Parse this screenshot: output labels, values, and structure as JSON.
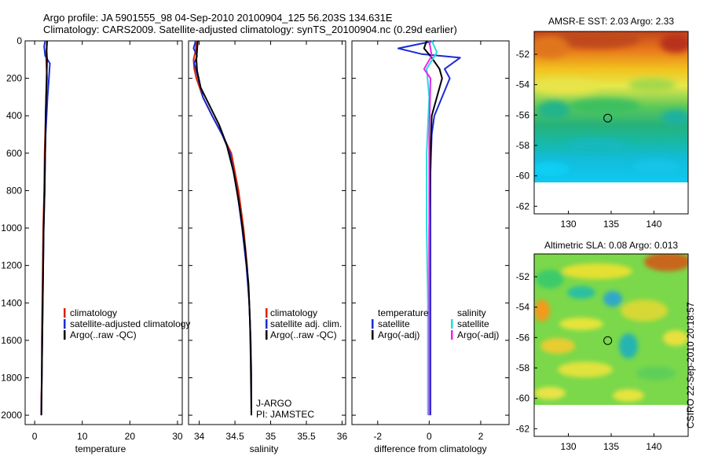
{
  "header": {
    "title_line1": "Argo profile: JA 5901555_98 04-Sep-2010 20100904_125 56.203S 134.631E",
    "title_line2": "Climatology: CARS2009. Satellite-adjusted climatology: synTS_20100904.nc (0.29d earlier)"
  },
  "stamp": "CSIRO 22-Sep-2010 20:18:57",
  "colors": {
    "climatology": "#dd2200",
    "satellite_adjusted": "#1a2bd6",
    "argo": "#000000",
    "satellite_salinity": "#22dddd",
    "argo_adj_salinity": "#ee22ee"
  },
  "chart_data": [
    {
      "type": "line",
      "title": "",
      "xlabel": "temperature",
      "ylabel": "",
      "xlim": [
        -2,
        31
      ],
      "ylim": [
        2050,
        0
      ],
      "xticks": [
        0,
        10,
        20,
        30
      ],
      "xtick_labels": [
        "0",
        "10",
        "20",
        "30"
      ],
      "yticks": [
        0,
        200,
        400,
        600,
        800,
        1000,
        1200,
        1400,
        1600,
        1800,
        2000
      ],
      "ytick_labels": [
        "0",
        "200",
        "400",
        "600",
        "800",
        "1000",
        "1200",
        "1400",
        "1600",
        "1800",
        "2000"
      ],
      "legend": {
        "position": "bottom-right",
        "entries": [
          "climatology",
          "satellite-adjusted climatology",
          "Argo(..raw -QC)"
        ]
      },
      "series": [
        {
          "name": "climatology",
          "color": "#dd2200",
          "x": [
            2.6,
            2.5,
            2.4,
            2.5,
            2.6,
            2.4,
            2.3,
            2.2,
            2.1,
            2.0,
            1.9,
            1.8,
            1.7,
            1.6,
            1.5,
            1.5,
            1.4,
            1.4
          ],
          "y": [
            0,
            50,
            100,
            150,
            200,
            300,
            400,
            500,
            600,
            800,
            900,
            1000,
            1200,
            1400,
            1600,
            1800,
            1900,
            2000
          ]
        },
        {
          "name": "satellite-adjusted climatology",
          "color": "#1a2bd6",
          "x": [
            2.2,
            2.0,
            2.2,
            3.2,
            3.0,
            2.7,
            2.5,
            2.3,
            2.2,
            2.1,
            1.9,
            1.8,
            1.7,
            1.6,
            1.5,
            1.4
          ],
          "y": [
            0,
            30,
            80,
            120,
            200,
            300,
            400,
            500,
            600,
            800,
            1000,
            1200,
            1400,
            1600,
            1800,
            2000
          ]
        },
        {
          "name": "Argo(..raw -QC)",
          "color": "#000000",
          "x": [
            2.6,
            2.5,
            2.6,
            2.5,
            2.4,
            2.3,
            2.2,
            2.1,
            1.9,
            1.8,
            1.7,
            1.6,
            1.5,
            1.4
          ],
          "y": [
            0,
            50,
            100,
            200,
            300,
            400,
            600,
            800,
            1000,
            1200,
            1400,
            1600,
            1800,
            2000
          ]
        }
      ]
    },
    {
      "type": "line",
      "title": "",
      "xlabel": "salinity",
      "ylabel": "",
      "xlim": [
        33.85,
        36.05
      ],
      "ylim": [
        2050,
        0
      ],
      "xticks": [
        34,
        34.5,
        35,
        35.5,
        36
      ],
      "xtick_labels": [
        "34",
        "34.5",
        "35",
        "35.5",
        "36"
      ],
      "legend": {
        "position": "bottom-right",
        "entries": [
          "climatology",
          "satellite adj. clim.",
          "Argo(..raw -QC)"
        ]
      },
      "annotation": [
        "J-ARGO",
        "PI: JAMSTEC"
      ],
      "series": [
        {
          "name": "climatology",
          "color": "#dd2200",
          "x": [
            33.96,
            33.95,
            33.92,
            33.93,
            33.96,
            34.05,
            34.18,
            34.32,
            34.45,
            34.55,
            34.62,
            34.67,
            34.7,
            34.72,
            34.73,
            34.73,
            34.73
          ],
          "y": [
            0,
            50,
            100,
            150,
            200,
            300,
            400,
            500,
            600,
            800,
            1000,
            1200,
            1400,
            1600,
            1800,
            1900,
            2000
          ]
        },
        {
          "name": "satellite adj. clim.",
          "color": "#1a2bd6",
          "x": [
            33.95,
            33.92,
            33.97,
            33.93,
            33.96,
            34.05,
            34.18,
            34.32,
            34.43,
            34.53,
            34.6,
            34.66,
            34.7,
            34.72,
            34.73,
            34.73
          ],
          "y": [
            0,
            40,
            80,
            120,
            160,
            300,
            400,
            500,
            600,
            800,
            1000,
            1200,
            1400,
            1600,
            1800,
            2000
          ]
        },
        {
          "name": "Argo(..raw -QC)",
          "color": "#000000",
          "x": [
            33.98,
            33.97,
            33.96,
            33.97,
            34.02,
            34.15,
            34.28,
            34.38,
            34.48,
            34.57,
            34.64,
            34.69,
            34.71,
            34.72,
            34.73
          ],
          "y": [
            0,
            50,
            100,
            160,
            250,
            350,
            450,
            550,
            700,
            900,
            1100,
            1300,
            1500,
            1700,
            2000
          ]
        }
      ]
    },
    {
      "type": "line",
      "title": "",
      "xlabel": "difference from climatology",
      "ylabel": "",
      "xlim": [
        -3,
        3.1
      ],
      "ylim": [
        2050,
        0
      ],
      "xticks": [
        -2,
        0,
        2
      ],
      "xtick_labels": [
        "-2",
        "0",
        "2"
      ],
      "legend": {
        "position": "bottom",
        "columns": [
          "temperature",
          "salinity"
        ],
        "entries": [
          "satellite",
          "Argo(-adj)",
          "satellite",
          "Argo(-adj)"
        ]
      },
      "series": [
        {
          "name": "temperature satellite",
          "color": "#1a2bd6",
          "x": [
            0.2,
            -1.2,
            -0.3,
            1.2,
            0.6,
            0.8,
            0.5,
            0.2,
            0.1,
            0.05,
            0.05,
            0.05,
            0.05,
            0.05
          ],
          "y": [
            0,
            40,
            70,
            90,
            150,
            200,
            300,
            400,
            500,
            700,
            1000,
            1400,
            1800,
            2000
          ]
        },
        {
          "name": "temperature Argo(-adj)",
          "color": "#000000",
          "x": [
            -0.1,
            -0.2,
            0.1,
            0.4,
            0.5,
            0.3,
            0.1,
            0.05,
            0.0,
            0.0,
            0.0
          ],
          "y": [
            0,
            40,
            90,
            150,
            200,
            300,
            400,
            600,
            1000,
            1500,
            2000
          ]
        },
        {
          "name": "salinity satellite",
          "color": "#22dddd",
          "x": [
            0.1,
            0.3,
            -0.1,
            0.0,
            -0.1,
            -0.1,
            -0.05,
            -0.05,
            -0.05
          ],
          "y": [
            0,
            60,
            150,
            300,
            600,
            1000,
            1400,
            1800,
            2000
          ]
        },
        {
          "name": "salinity Argo(-adj)",
          "color": "#ee22ee",
          "x": [
            0.0,
            0.1,
            -0.2,
            0.05,
            0.0,
            0.0,
            0.0
          ],
          "y": [
            0,
            80,
            150,
            200,
            500,
            1200,
            2000
          ]
        }
      ]
    },
    {
      "type": "heatmap",
      "title": "AMSR-E SST: 2.03 Argo: 2.33",
      "xlim": [
        126,
        144
      ],
      "ylim": [
        -62.5,
        -50.5
      ],
      "xticks": [
        130,
        135,
        140
      ],
      "yticks": [
        -52,
        -54,
        -56,
        -58,
        -60,
        -62
      ],
      "data_lat_range": [
        -60,
        -50.5
      ],
      "marker": {
        "lon": 134.6,
        "lat": -56.2
      }
    },
    {
      "type": "heatmap",
      "title": "Altimetric SLA: 0.08 Argo: 0.013",
      "xlim": [
        126,
        144
      ],
      "ylim": [
        -62.5,
        -50.5
      ],
      "xticks": [
        130,
        135,
        140
      ],
      "yticks": [
        -52,
        -54,
        -56,
        -58,
        -60,
        -62
      ],
      "data_lat_range": [
        -60,
        -50.5
      ],
      "marker": {
        "lon": 134.6,
        "lat": -56.2
      }
    }
  ]
}
